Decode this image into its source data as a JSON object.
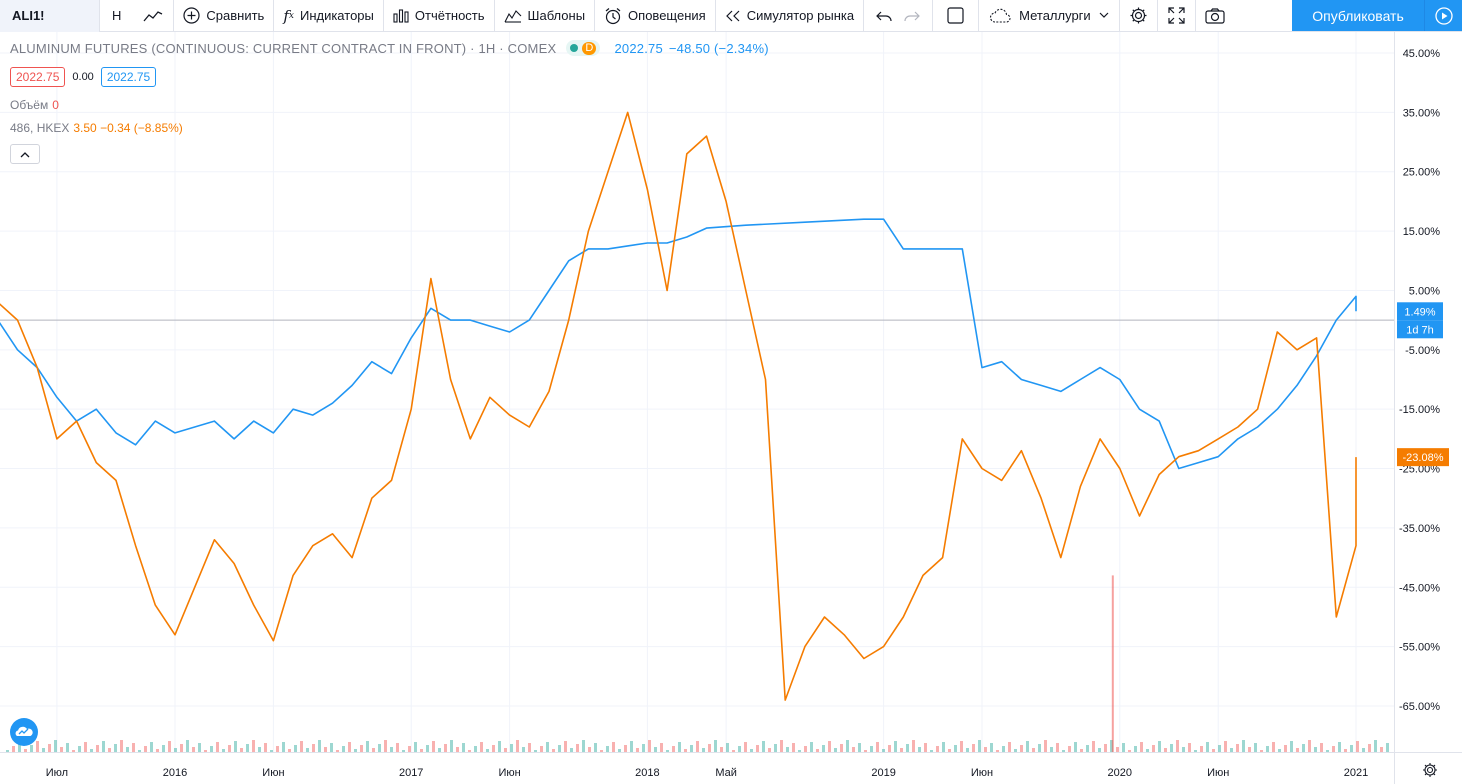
{
  "toolbar": {
    "symbol": "ALI1!",
    "interval": "H",
    "compare": "Сравнить",
    "indicators": "Индикаторы",
    "financials": "Отчётность",
    "templates": "Шаблоны",
    "alerts": "Оповещения",
    "replay": "Симулятор рынка",
    "watchlist": "Металлурги",
    "publish": "Опубликовать"
  },
  "legend": {
    "title": "ALUMINUM FUTURES (CONTINUOUS: CURRENT CONTRACT IN FRONT) · 1H · COMEX",
    "d_badge": "D",
    "last": "2022.75",
    "change": "−48.50 (−2.34%)",
    "bid": "2022.75",
    "spread": "0.00",
    "ask": "2022.75",
    "volume_label": "Объём",
    "volume_value": "0",
    "compare_symbol": "486, HKEX",
    "compare_values": "3.50 −0.34 (−8.85%)"
  },
  "colors": {
    "main_series": "#2196f3",
    "compare_series": "#f57c00",
    "volume_up": "#26a69a",
    "volume_down": "#ef5350",
    "publish": "#2196f3"
  },
  "icons": [
    "line-chart-icon",
    "plus-circle-icon",
    "fx-icon",
    "bar-chart-icon",
    "templates-icon",
    "alarm-clock-icon",
    "replay-icon",
    "undo-icon",
    "redo-icon",
    "checkbox-icon",
    "cloud-icon",
    "chevron-down-icon",
    "gear-icon",
    "fullscreen-icon",
    "camera-icon",
    "play-icon",
    "tradingview-logo-icon",
    "chevron-up-icon"
  ],
  "chart_data": {
    "type": "line",
    "y_unit": "%",
    "ylim": [
      -72,
      47
    ],
    "y_ticks": [
      "45.00%",
      "35.00%",
      "25.00%",
      "15.00%",
      "5.00%",
      "-5.00%",
      "-15.00%",
      "-25.00%",
      "-35.00%",
      "-45.00%",
      "-55.00%",
      "-65.00%"
    ],
    "y_tick_values": [
      45,
      35,
      25,
      15,
      5,
      -5,
      -15,
      -25,
      -35,
      -45,
      -55,
      -65
    ],
    "x_ticks": [
      "Июл",
      "2016",
      "Июн",
      "2017",
      "Июн",
      "2018",
      "Май",
      "2019",
      "Июн",
      "2020",
      "Июн",
      "2021"
    ],
    "x_tick_dates": [
      "2015-07",
      "2016-01",
      "2016-06",
      "2017-01",
      "2017-06",
      "2018-01",
      "2018-05",
      "2019-01",
      "2019-06",
      "2020-01",
      "2020-06",
      "2021-01"
    ],
    "zero_line": 0,
    "last_labels": [
      {
        "series": "ALI1!",
        "value": "1.49%",
        "sub": "1d 7h"
      },
      {
        "series": "486, HKEX",
        "value": "-23.08%"
      }
    ],
    "series": [
      {
        "name": "ALI1!",
        "points": [
          [
            "2015-04",
            0
          ],
          [
            "2015-05",
            -5
          ],
          [
            "2015-06",
            -8
          ],
          [
            "2015-07",
            -13
          ],
          [
            "2015-08",
            -17
          ],
          [
            "2015-09",
            -15
          ],
          [
            "2015-10",
            -19
          ],
          [
            "2015-11",
            -21
          ],
          [
            "2015-12",
            -17
          ],
          [
            "2016-01",
            -19
          ],
          [
            "2016-02",
            -18
          ],
          [
            "2016-03",
            -17
          ],
          [
            "2016-04",
            -20
          ],
          [
            "2016-05",
            -17
          ],
          [
            "2016-06",
            -19
          ],
          [
            "2016-07",
            -15
          ],
          [
            "2016-08",
            -16
          ],
          [
            "2016-09",
            -14
          ],
          [
            "2016-10",
            -11
          ],
          [
            "2016-11",
            -7
          ],
          [
            "2016-12",
            -9
          ],
          [
            "2017-01",
            -3
          ],
          [
            "2017-02",
            2
          ],
          [
            "2017-03",
            0
          ],
          [
            "2017-04",
            0
          ],
          [
            "2017-05",
            -1
          ],
          [
            "2017-06",
            -2
          ],
          [
            "2017-07",
            0
          ],
          [
            "2017-08",
            5
          ],
          [
            "2017-09",
            10
          ],
          [
            "2017-10",
            12
          ],
          [
            "2017-11",
            12
          ],
          [
            "2017-12",
            12.5
          ],
          [
            "2018-01",
            13
          ],
          [
            "2018-02",
            13
          ],
          [
            "2018-03",
            14
          ],
          [
            "2018-04",
            15.5
          ],
          [
            "2018-06",
            16
          ],
          [
            "2018-09",
            16.5
          ],
          [
            "2018-12",
            17
          ],
          [
            "2019-01",
            17
          ],
          [
            "2019-02",
            12
          ],
          [
            "2019-05",
            12
          ],
          [
            "2019-06",
            -8
          ],
          [
            "2019-07",
            -7
          ],
          [
            "2019-08",
            -10
          ],
          [
            "2019-09",
            -11
          ],
          [
            "2019-10",
            -12
          ],
          [
            "2019-11",
            -10
          ],
          [
            "2019-12",
            -8
          ],
          [
            "2020-01",
            -10
          ],
          [
            "2020-02",
            -15
          ],
          [
            "2020-03",
            -17
          ],
          [
            "2020-04",
            -25
          ],
          [
            "2020-05",
            -24
          ],
          [
            "2020-06",
            -23
          ],
          [
            "2020-07",
            -20
          ],
          [
            "2020-08",
            -18
          ],
          [
            "2020-09",
            -15
          ],
          [
            "2020-10",
            -11
          ],
          [
            "2020-11",
            -6
          ],
          [
            "2020-12",
            0
          ],
          [
            "2021-01",
            4
          ],
          [
            "2021-01",
            1.49
          ]
        ]
      },
      {
        "name": "486, HKEX",
        "points": [
          [
            "2015-04",
            3
          ],
          [
            "2015-05",
            0
          ],
          [
            "2015-06",
            -8
          ],
          [
            "2015-07",
            -20
          ],
          [
            "2015-08",
            -17
          ],
          [
            "2015-09",
            -24
          ],
          [
            "2015-10",
            -27
          ],
          [
            "2015-11",
            -38
          ],
          [
            "2015-12",
            -48
          ],
          [
            "2016-01",
            -53
          ],
          [
            "2016-02",
            -45
          ],
          [
            "2016-03",
            -37
          ],
          [
            "2016-04",
            -41
          ],
          [
            "2016-05",
            -48
          ],
          [
            "2016-06",
            -54
          ],
          [
            "2016-07",
            -43
          ],
          [
            "2016-08",
            -38
          ],
          [
            "2016-09",
            -36
          ],
          [
            "2016-10",
            -40
          ],
          [
            "2016-11",
            -30
          ],
          [
            "2016-12",
            -27
          ],
          [
            "2017-01",
            -15
          ],
          [
            "2017-02",
            7
          ],
          [
            "2017-03",
            -10
          ],
          [
            "2017-04",
            -20
          ],
          [
            "2017-05",
            -13
          ],
          [
            "2017-06",
            -16
          ],
          [
            "2017-07",
            -18
          ],
          [
            "2017-08",
            -12
          ],
          [
            "2017-09",
            0
          ],
          [
            "2017-10",
            15
          ],
          [
            "2017-11",
            25
          ],
          [
            "2017-12",
            35
          ],
          [
            "2018-01",
            22
          ],
          [
            "2018-02",
            5
          ],
          [
            "2018-03",
            28
          ],
          [
            "2018-04",
            31
          ],
          [
            "2018-05",
            20
          ],
          [
            "2018-06",
            5
          ],
          [
            "2018-07",
            -10
          ],
          [
            "2018-08",
            -64
          ],
          [
            "2018-09",
            -55
          ],
          [
            "2018-10",
            -50
          ],
          [
            "2018-11",
            -53
          ],
          [
            "2018-12",
            -57
          ],
          [
            "2019-01",
            -55
          ],
          [
            "2019-02",
            -50
          ],
          [
            "2019-03",
            -43
          ],
          [
            "2019-04",
            -40
          ],
          [
            "2019-05",
            -20
          ],
          [
            "2019-06",
            -25
          ],
          [
            "2019-07",
            -27
          ],
          [
            "2019-08",
            -22
          ],
          [
            "2019-09",
            -30
          ],
          [
            "2019-10",
            -40
          ],
          [
            "2019-11",
            -28
          ],
          [
            "2019-12",
            -20
          ],
          [
            "2020-01",
            -25
          ],
          [
            "2020-02",
            -33
          ],
          [
            "2020-03",
            -26
          ],
          [
            "2020-04",
            -23
          ],
          [
            "2020-05",
            -22
          ],
          [
            "2020-06",
            -20
          ],
          [
            "2020-07",
            -18
          ],
          [
            "2020-08",
            -15
          ],
          [
            "2020-09",
            -2
          ],
          [
            "2020-10",
            -5
          ],
          [
            "2020-11",
            -3
          ],
          [
            "2020-12",
            -50
          ],
          [
            "2021-01",
            -38
          ],
          [
            "2021-01",
            -23.08
          ]
        ]
      }
    ]
  }
}
